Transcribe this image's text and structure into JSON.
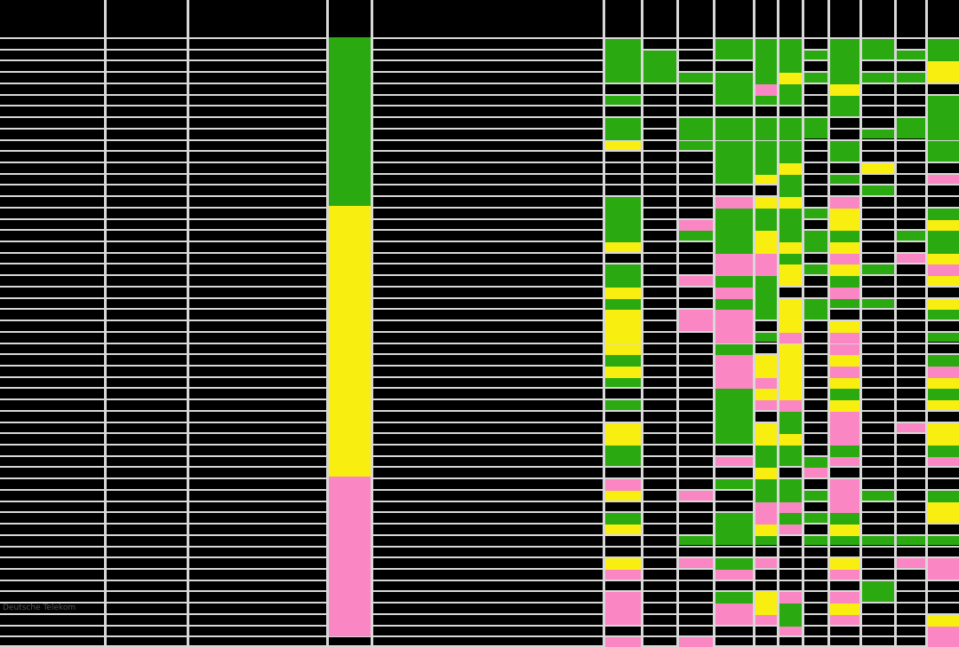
{
  "table": {
    "visible_label": "Deutsche Telekom"
  },
  "chart_data": {
    "type": "heatmap",
    "title": "",
    "rows": 54,
    "columns": 11,
    "legend_colors": {
      "G": "#2aaa10",
      "Y": "#f8ee0f",
      "P": "#fa86c4",
      "K": "#000000"
    },
    "gridline_color": "#d8d8d8",
    "background_color": "#000000",
    "band_column_segments": [
      {
        "color": "G",
        "from_row": 1,
        "to_row": 15
      },
      {
        "color": "Y",
        "from_row": 16,
        "to_row": 39
      },
      {
        "color": "P",
        "from_row": 40,
        "to_row": 53
      },
      {
        "color": "K",
        "from_row": 54,
        "to_row": 54
      }
    ],
    "visible_row_label": {
      "row": 51,
      "text": "Deutsche Telekom"
    },
    "matrix": [
      "GKKGGGKGGKG",
      "GGKGGGGGGGG",
      "GGKKGGKGKKY",
      "GGGGGYGGGGY",
      "KKKGPGKYKKK",
      "GKKGGGKGKKG",
      "KKKKKKKGKKG",
      "GKGGGGGKKGG",
      "GKGGGGGKGGG",
      "YKGGGGKGKKG",
      "KKKGGGKGKKG",
      "KKKGGYKKYKK",
      "KKKGYGKGKKP",
      "KKKKKGKKGKK",
      "GKKPYYKPKKK",
      "GKKGGGGYKKG",
      "GKPGGGKYKKY",
      "GKGGYGGGKGG",
      "YKKGYYGYKKG",
      "KKKPPGKPKPY",
      "GKKPPYGYGKP",
      "GKPGGYKGKKY",
      "YKKPGKKPKKK",
      "GKKGGYGGGKY",
      "YKPPGYGKKKG",
      "YKPPKYKYKKK",
      "YKKPGPKPKKG",
      "YKKGKYKPKKK",
      "GKKPYYKYKKG",
      "YKKPYYKPKKP",
      "GKKPPYKYKKY",
      "KKKGYYKGKKG",
      "GKKGPPKYKKY",
      "KKKGKGKPKKK",
      "YKKGYGKPKPY",
      "YKKGYYKPKKY",
      "GKKKGGKGKKG",
      "GKKPGGGPKKP",
      "KKKKYKPKKKK",
      "PKKGGGKPKKK",
      "YKPKGGGPGKG",
      "KKKKPPKPKKY",
      "GKKGPGGGKKY",
      "YKKGYPKYKKK",
      "KKGGGKGGGGG",
      "KKKKKKKKKKK",
      "YKPGPKKYKPP",
      "PKKPKKKPKKP",
      "KKKKKKKKGKK",
      "PKKGYPKPGKK",
      "PKKPYGKYKKK",
      "PKKPPGKPKKY",
      "KKKKKPKKKKP",
      "PKPKKKKKKKP"
    ]
  }
}
